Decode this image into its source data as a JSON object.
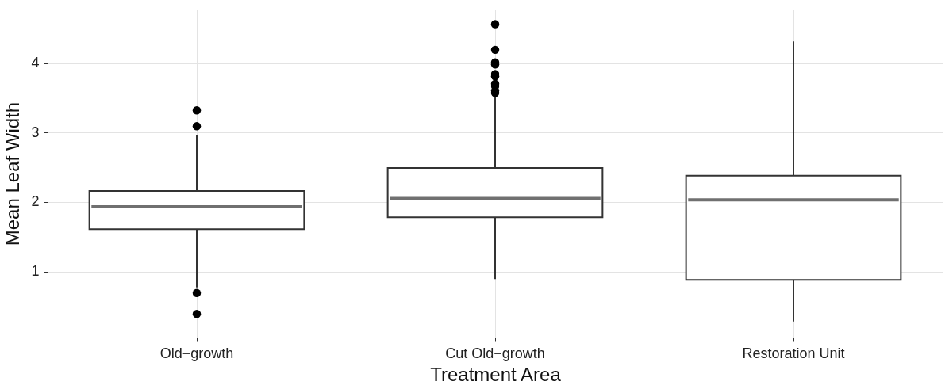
{
  "chart_data": {
    "type": "box",
    "xlabel": "Treatment Area",
    "ylabel": "Mean Leaf Width",
    "categories": [
      "Old−growth",
      "Cut Old−growth",
      "Restoration Unit"
    ],
    "boxes": [
      {
        "low": 0.77,
        "q1": 1.61,
        "median": 1.93,
        "q3": 2.16,
        "high": 2.97,
        "outliers": [
          3.32,
          3.09,
          0.69,
          0.39
        ]
      },
      {
        "low": 0.89,
        "q1": 1.78,
        "median": 2.05,
        "q3": 2.49,
        "high": 3.51,
        "outliers": [
          4.56,
          4.19,
          4.01,
          3.98,
          3.84,
          3.81,
          3.7,
          3.67,
          3.6,
          3.57
        ]
      },
      {
        "low": 0.28,
        "q1": 0.88,
        "median": 2.03,
        "q3": 2.38,
        "high": 4.31
      }
    ],
    "ylim": [
      0.05,
      4.77
    ],
    "yticks": [
      1,
      2,
      3,
      4
    ],
    "grid": true
  }
}
